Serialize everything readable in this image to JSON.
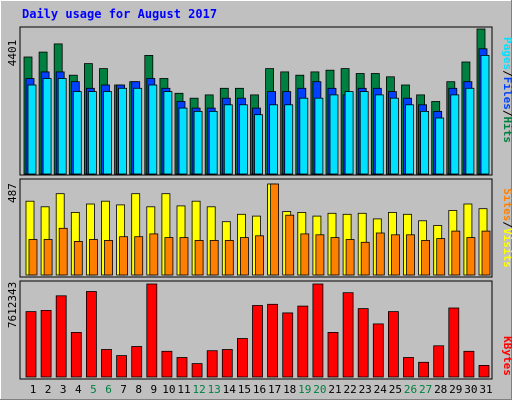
{
  "chart_title": "Daily usage for August 2017",
  "colors": {
    "background": "#c0c0c0",
    "plot_bg": "#c0c0c0",
    "title": "#0000ff",
    "hits": "#008040",
    "files": "#0040ff",
    "pages": "#00e0ff",
    "visits": "#ffff00",
    "sites": "#ff8000",
    "kbytes": "#ff0000",
    "weekend_label": "#008040",
    "weekday_label": "#000000"
  },
  "chart_data": [
    {
      "type": "bar",
      "panel": "hits-files-pages",
      "ymax_label": "4401",
      "ymax": 4401,
      "right_labels": [
        "Pages",
        "/",
        "Files",
        "/",
        "Hits"
      ],
      "categories": [
        "1",
        "2",
        "3",
        "4",
        "5",
        "6",
        "7",
        "8",
        "9",
        "10",
        "11",
        "12",
        "13",
        "14",
        "15",
        "16",
        "17",
        "18",
        "19",
        "20",
        "21",
        "22",
        "23",
        "24",
        "25",
        "26",
        "27",
        "28",
        "29",
        "30",
        "31"
      ],
      "series": [
        {
          "name": "Hits",
          "values": [
            3550,
            3700,
            3950,
            3000,
            3350,
            3200,
            2700,
            2800,
            3600,
            2900,
            2450,
            2300,
            2400,
            2600,
            2600,
            2400,
            3200,
            3100,
            3000,
            3100,
            3150,
            3200,
            3050,
            3050,
            2950,
            2700,
            2400,
            2200,
            2800,
            3400,
            4401
          ]
        },
        {
          "name": "Files",
          "values": [
            2900,
            3100,
            3100,
            2800,
            2600,
            2700,
            2700,
            2800,
            2900,
            2600,
            2200,
            2000,
            2000,
            2300,
            2300,
            2000,
            2500,
            2500,
            2600,
            2800,
            2600,
            2400,
            2600,
            2600,
            2500,
            2300,
            2100,
            1900,
            2600,
            2800,
            3800
          ]
        },
        {
          "name": "Pages",
          "values": [
            2700,
            2900,
            2900,
            2500,
            2500,
            2500,
            2600,
            2600,
            2700,
            2500,
            2000,
            1900,
            1900,
            2100,
            2100,
            1800,
            2100,
            2100,
            2300,
            2300,
            2400,
            2500,
            2500,
            2400,
            2300,
            2100,
            1900,
            1700,
            2400,
            2600,
            3600
          ]
        }
      ]
    },
    {
      "type": "bar",
      "panel": "visits-sites",
      "ymax_label": "487",
      "ymax": 487,
      "right_labels": [
        "Sites",
        "/",
        "Visits"
      ],
      "categories": [
        "1",
        "2",
        "3",
        "4",
        "5",
        "6",
        "7",
        "8",
        "9",
        "10",
        "11",
        "12",
        "13",
        "14",
        "15",
        "16",
        "17",
        "18",
        "19",
        "20",
        "21",
        "22",
        "23",
        "24",
        "25",
        "26",
        "27",
        "28",
        "29",
        "30",
        "31"
      ],
      "series": [
        {
          "name": "Visits",
          "values": [
            395,
            365,
            435,
            335,
            380,
            395,
            375,
            435,
            365,
            435,
            370,
            395,
            365,
            285,
            325,
            315,
            487,
            340,
            335,
            315,
            330,
            325,
            330,
            300,
            335,
            325,
            290,
            265,
            345,
            380,
            355
          ]
        },
        {
          "name": "Sites",
          "values": [
            190,
            190,
            250,
            180,
            190,
            185,
            205,
            205,
            220,
            200,
            200,
            185,
            185,
            185,
            200,
            210,
            487,
            320,
            220,
            215,
            200,
            190,
            175,
            225,
            215,
            215,
            185,
            195,
            235,
            200,
            235
          ]
        }
      ]
    },
    {
      "type": "bar",
      "panel": "kbytes",
      "ymax_label": "7612343",
      "ymax": 7612343,
      "right_labels": [
        "KBytes"
      ],
      "categories": [
        "1",
        "2",
        "3",
        "4",
        "5",
        "6",
        "7",
        "8",
        "9",
        "10",
        "11",
        "12",
        "13",
        "14",
        "15",
        "16",
        "17",
        "18",
        "19",
        "20",
        "21",
        "22",
        "23",
        "24",
        "25",
        "26",
        "27",
        "28",
        "29",
        "30",
        "31"
      ],
      "series": [
        {
          "name": "KBytes",
          "values": [
            5350,
            5450,
            6650,
            3650,
            7000,
            2250,
            1750,
            2500,
            7612,
            2100,
            1600,
            1100,
            2150,
            2250,
            3150,
            5850,
            5950,
            5250,
            5800,
            7612,
            3650,
            6900,
            5600,
            4350,
            5350,
            1600,
            1200,
            2550,
            5650,
            2100,
            950
          ]
        }
      ]
    }
  ],
  "weekend_days": [
    "5",
    "6",
    "12",
    "13",
    "19",
    "20",
    "26",
    "27"
  ]
}
